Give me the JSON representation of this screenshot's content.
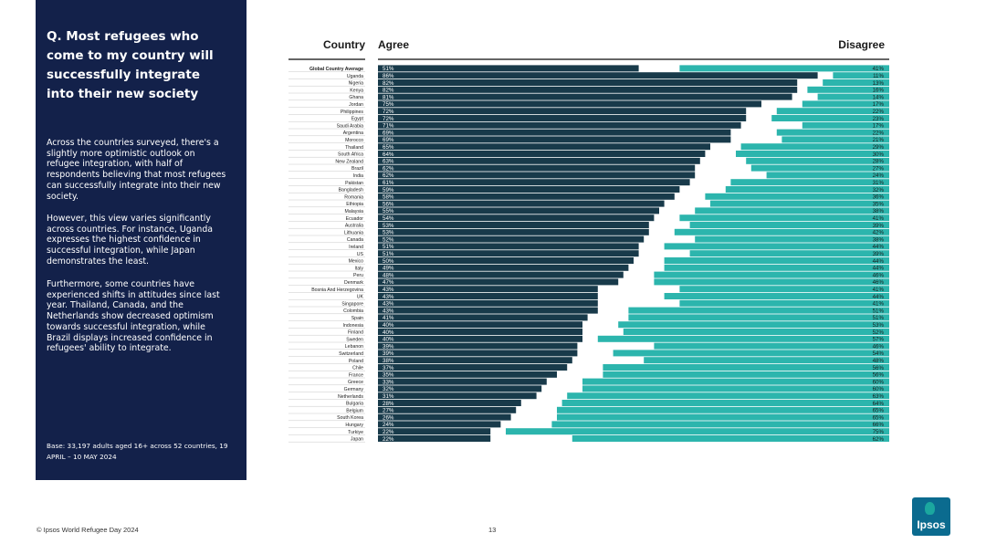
{
  "sidebar": {
    "question": "Q. Most refugees who come to my country will successfully integrate into their new society",
    "paragraphs": [
      "Across the countries surveyed, there's a slightly more optimistic outlook on refugee integration, with half of respondents believing that most refugees can successfully integrate into their new society.",
      "However, this view varies significantly across countries. For instance, Uganda expresses the highest confidence in successful integration, while Japan demonstrates the least.",
      "Furthermore, some countries have experienced shifts in attitudes since last year. Thailand, Canada, and the Netherlands show decreased optimism towards successful integration, while Brazil displays increased confidence in refugees' ability to integrate."
    ],
    "base": "Base: 33,197 adults aged 16+ across 52 countries, 19 APRIL – 10 MAY 2024"
  },
  "footer": {
    "source": "© Ipsos World Refugee Day 2024",
    "page_number": "13",
    "logo": "Ipsos"
  },
  "colors": {
    "sidebar_bg": "#13214a",
    "agree": "#183a4a",
    "disagree": "#2cb5ad",
    "neutral": "#ffffff"
  },
  "chart_data": {
    "type": "bar",
    "orientation": "horizontal-stacked",
    "headers": {
      "category": "Country",
      "agree": "Agree",
      "disagree": "Disagree"
    },
    "series": [
      {
        "name": "Agree"
      },
      {
        "name": "Disagree"
      }
    ],
    "categories": [
      "Global Country Average",
      "Uganda",
      "Nigeria",
      "Kenya",
      "Ghana",
      "Jordan",
      "Philippines",
      "Egypt",
      "Saudi Arabia",
      "Argentina",
      "Morocco",
      "Thailand",
      "South Africa",
      "New Zealand",
      "Brazil",
      "India",
      "Pakistan",
      "Bangladesh",
      "Romania",
      "Ethiopia",
      "Malaysia",
      "Ecuador",
      "Australia",
      "Lithuania",
      "Canada",
      "Ireland",
      "US",
      "Mexico",
      "Italy",
      "Peru",
      "Denmark",
      "Bosnia And Herzegovina",
      "UK",
      "Singapore",
      "Colombia",
      "Spain",
      "Indonesia",
      "Finland",
      "Sweden",
      "Lebanon",
      "Switzerland",
      "Poland",
      "Chile",
      "France",
      "Greece",
      "Germany",
      "Netherlands",
      "Bulgaria",
      "Belgium",
      "South Korea",
      "Hungary",
      "Turkiye",
      "Japan"
    ],
    "agree": [
      51,
      86,
      82,
      82,
      81,
      75,
      72,
      72,
      71,
      69,
      69,
      65,
      64,
      63,
      62,
      62,
      61,
      59,
      58,
      56,
      55,
      54,
      53,
      53,
      52,
      51,
      51,
      50,
      49,
      48,
      47,
      43,
      43,
      43,
      43,
      41,
      40,
      40,
      40,
      39,
      39,
      38,
      37,
      35,
      33,
      32,
      31,
      28,
      27,
      26,
      24,
      22,
      22
    ],
    "disagree": [
      41,
      11,
      13,
      16,
      14,
      17,
      22,
      23,
      17,
      22,
      21,
      29,
      30,
      28,
      27,
      24,
      31,
      32,
      36,
      35,
      38,
      41,
      39,
      42,
      38,
      44,
      39,
      44,
      44,
      46,
      46,
      41,
      44,
      41,
      51,
      51,
      53,
      52,
      57,
      46,
      54,
      48,
      56,
      56,
      60,
      60,
      63,
      64,
      65,
      65,
      66,
      75,
      62
    ]
  }
}
